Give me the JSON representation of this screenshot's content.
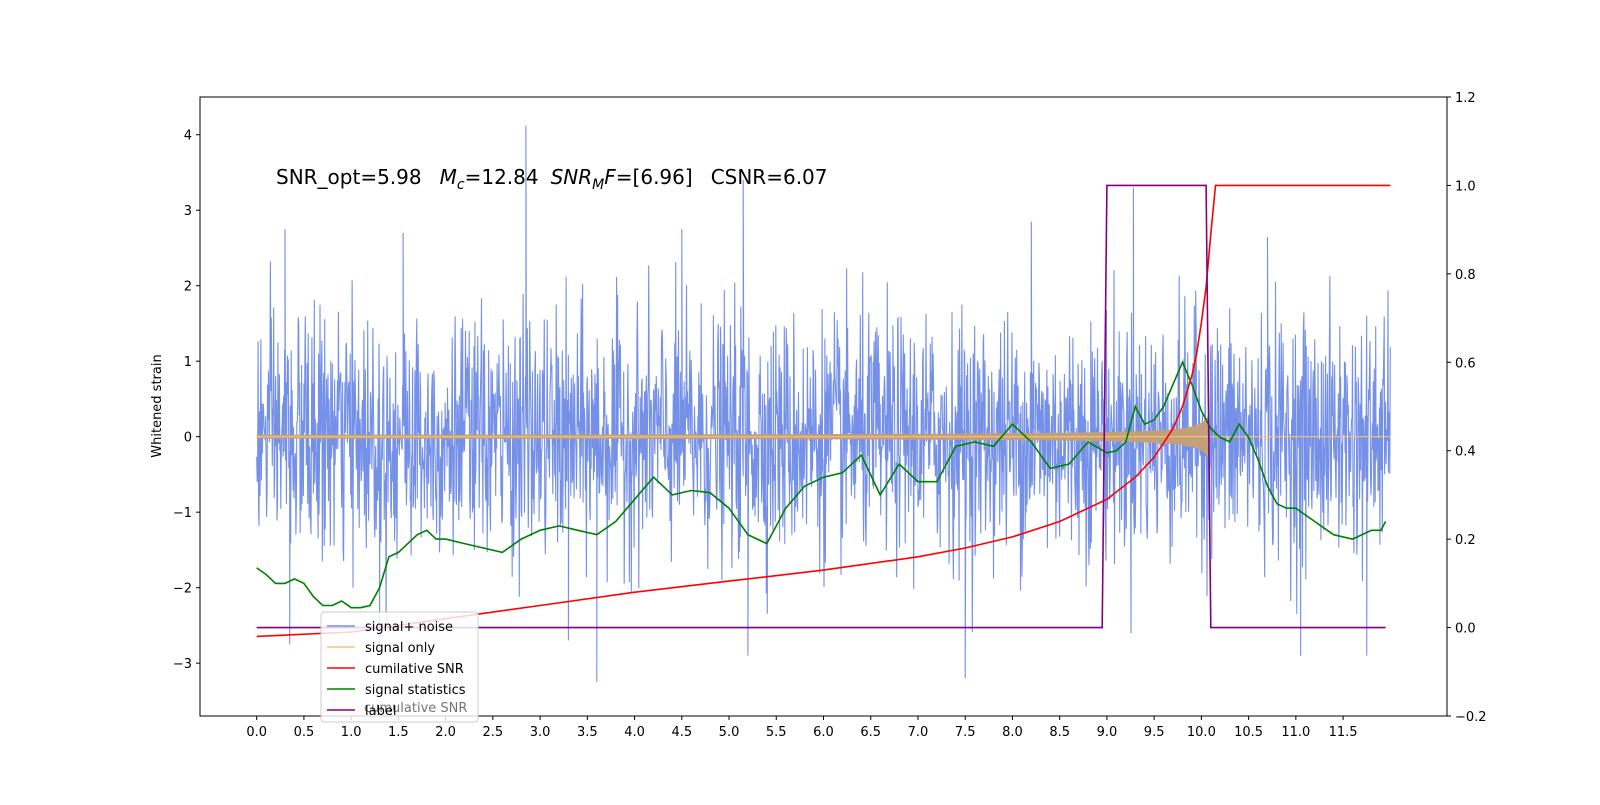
{
  "chart_data": {
    "type": "line",
    "annotation": {
      "snr_opt": "SNR_opt=5.98",
      "mc_symbol": "M",
      "mc_sub": "c",
      "mc_value": "=12.84",
      "snrmf_symbol": "SNR",
      "snrmf_sub": "M",
      "snrmf_f": "F",
      "snrmf_value": "=[6.96]",
      "csnr": "CSNR=6.07"
    },
    "ylabel": "Whitened strain",
    "xlim": [
      -0.6,
      12.6
    ],
    "ylim": [
      -3.7,
      4.5
    ],
    "y2lim": [
      -0.2,
      1.2
    ],
    "x_ticks": [
      "0.0",
      "0.5",
      "1.0",
      "1.5",
      "2.0",
      "2.5",
      "3.0",
      "3.5",
      "4.0",
      "4.5",
      "5.0",
      "5.5",
      "6.0",
      "6.5",
      "7.0",
      "7.5",
      "8.0",
      "8.5",
      "9.0",
      "9.5",
      "10.0",
      "10.5",
      "11.0",
      "11.5"
    ],
    "y_ticks": [
      "−3",
      "−2",
      "−1",
      "0",
      "1",
      "2",
      "3",
      "4"
    ],
    "y2_ticks": [
      "−0.2",
      "0.0",
      "0.2",
      "0.4",
      "0.6",
      "0.8",
      "1.0",
      "1.2"
    ],
    "x_range": [
      0.0,
      12.0
    ],
    "noise": {
      "name": "signal+ noise",
      "color": "#7590e8",
      "band_low": -2.1,
      "band_high": 2.1,
      "spikes": [
        [
          2.85,
          4.12
        ],
        [
          5.15,
          3.4
        ],
        [
          9.28,
          3.3
        ],
        [
          0.3,
          2.75
        ],
        [
          1.55,
          2.7
        ],
        [
          3.6,
          -3.25
        ],
        [
          7.5,
          -3.2
        ],
        [
          11.05,
          -2.9
        ],
        [
          11.75,
          -2.9
        ],
        [
          5.2,
          -2.9
        ],
        [
          1.3,
          -2.85
        ],
        [
          0.35,
          -2.75
        ],
        [
          3.3,
          -2.7
        ],
        [
          8.2,
          2.85
        ],
        [
          4.5,
          2.75
        ],
        [
          10.7,
          2.65
        ]
      ]
    },
    "signal": {
      "name": "signal only",
      "color": "#f5c56e",
      "fill_color": "#c3a07b",
      "chirp_t0": 10.1,
      "amp_base": 0.012,
      "amp_peak": 0.38
    },
    "cumulative_snr": {
      "name": "cumilative SNR",
      "color": "#ff0000",
      "x": [
        0.0,
        1.0,
        2.0,
        3.0,
        4.0,
        5.0,
        6.0,
        7.0,
        7.5,
        8.0,
        8.5,
        9.0,
        9.3,
        9.5,
        9.7,
        9.8,
        9.9,
        9.95,
        10.0,
        10.05,
        10.1,
        10.15,
        12.0
      ],
      "y": [
        -0.02,
        -0.01,
        0.02,
        0.05,
        0.08,
        0.105,
        0.13,
        0.16,
        0.18,
        0.205,
        0.24,
        0.29,
        0.34,
        0.385,
        0.45,
        0.5,
        0.57,
        0.62,
        0.69,
        0.77,
        0.89,
        1.0,
        1.0
      ]
    },
    "signal_statistics": {
      "name": "signal statistics",
      "color": "#008000",
      "x": [
        0.0,
        0.1,
        0.2,
        0.3,
        0.4,
        0.5,
        0.6,
        0.7,
        0.8,
        0.9,
        1.0,
        1.1,
        1.2,
        1.3,
        1.4,
        1.5,
        1.6,
        1.7,
        1.8,
        1.9,
        2.0,
        2.2,
        2.4,
        2.6,
        2.8,
        3.0,
        3.2,
        3.4,
        3.6,
        3.8,
        4.0,
        4.2,
        4.4,
        4.6,
        4.8,
        5.0,
        5.2,
        5.4,
        5.6,
        5.8,
        6.0,
        6.2,
        6.4,
        6.6,
        6.8,
        7.0,
        7.2,
        7.4,
        7.6,
        7.8,
        8.0,
        8.2,
        8.4,
        8.6,
        8.8,
        9.0,
        9.1,
        9.2,
        9.3,
        9.4,
        9.5,
        9.6,
        9.7,
        9.8,
        9.9,
        10.0,
        10.1,
        10.2,
        10.3,
        10.4,
        10.5,
        10.6,
        10.7,
        10.8,
        10.9,
        11.0,
        11.2,
        11.4,
        11.6,
        11.8,
        11.9,
        11.95
      ],
      "y": [
        0.135,
        0.12,
        0.1,
        0.1,
        0.11,
        0.1,
        0.07,
        0.05,
        0.05,
        0.06,
        0.045,
        0.045,
        0.05,
        0.09,
        0.16,
        0.17,
        0.19,
        0.21,
        0.22,
        0.2,
        0.2,
        0.19,
        0.18,
        0.17,
        0.2,
        0.22,
        0.23,
        0.22,
        0.21,
        0.24,
        0.29,
        0.34,
        0.3,
        0.31,
        0.305,
        0.27,
        0.21,
        0.19,
        0.27,
        0.32,
        0.34,
        0.35,
        0.39,
        0.3,
        0.37,
        0.33,
        0.33,
        0.41,
        0.42,
        0.41,
        0.46,
        0.42,
        0.36,
        0.37,
        0.42,
        0.395,
        0.4,
        0.42,
        0.5,
        0.46,
        0.47,
        0.5,
        0.55,
        0.6,
        0.55,
        0.49,
        0.45,
        0.43,
        0.42,
        0.46,
        0.43,
        0.38,
        0.32,
        0.28,
        0.27,
        0.27,
        0.24,
        0.21,
        0.2,
        0.22,
        0.22,
        0.24
      ]
    },
    "label": {
      "name": "label",
      "color": "#800080",
      "x": [
        0.0,
        8.95,
        9.0,
        10.05,
        10.1,
        11.95
      ],
      "y": [
        0.0,
        0.0,
        1.0,
        1.0,
        0.0,
        0.0
      ]
    },
    "legend": {
      "placement": "lower-left",
      "entries": [
        "signal+ noise",
        "signal only",
        "cumilative SNR",
        "signal statistics",
        "label"
      ],
      "ghost_text": "cumulative SNR"
    }
  }
}
